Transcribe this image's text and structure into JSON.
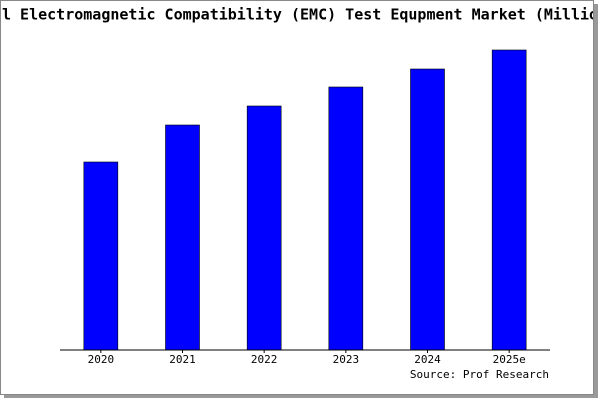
{
  "chart_data": {
    "type": "bar",
    "title": "l Electromagnetic Compatibility (EMC) Test Equpment Market (Millio",
    "categories": [
      "2020",
      "2021",
      "2022",
      "2023",
      "2024",
      "2025e"
    ],
    "values": [
      188,
      225,
      244,
      263,
      281,
      300
    ],
    "color": "#0000ff",
    "ylim": [
      0,
      300
    ],
    "source": "Source: Prof Research"
  }
}
